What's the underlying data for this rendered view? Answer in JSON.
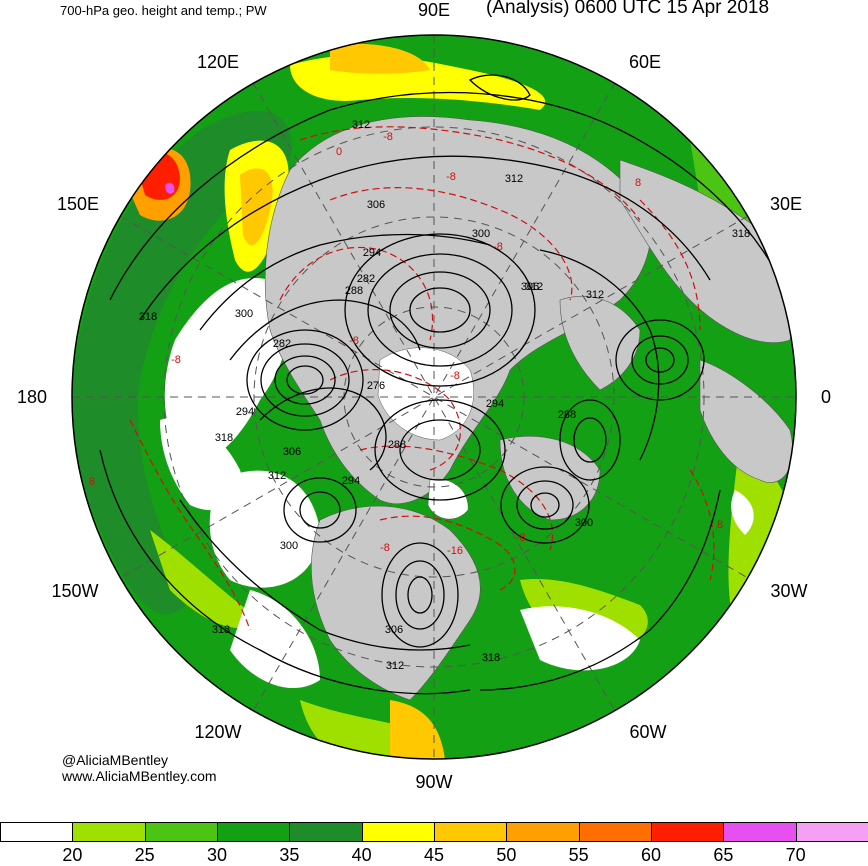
{
  "header": {
    "product": "700-hPa geo. height and temp.; PW",
    "valid": "(Analysis) 0600 UTC 15 Apr 2018"
  },
  "credits": {
    "handle": "@AliciaMBentley",
    "website": "www.AliciaMBentley.com"
  },
  "map": {
    "projection": "north polar stereographic",
    "longitude_labels": [
      "90E",
      "60E",
      "30E",
      "0",
      "30W",
      "60W",
      "90W",
      "120W",
      "150W",
      "180",
      "150E",
      "120E"
    ],
    "height_contour_labels": [
      "312",
      "312",
      "306",
      "300",
      "294",
      "282",
      "288",
      "312",
      "306",
      "318",
      "300",
      "282",
      "294",
      "276",
      "294",
      "288",
      "318",
      "306",
      "312",
      "288",
      "294",
      "312",
      "300",
      "300",
      "318",
      "306",
      "318",
      "312",
      "318"
    ],
    "temperature_contour_labels": [
      "0",
      "-8",
      "-8",
      "-8",
      "-8",
      "-8",
      "-8",
      "-8",
      "-16",
      "-8",
      "8",
      "8",
      "8"
    ],
    "colors": {
      "land": "#c8c8c8",
      "ocean": "#ffffff",
      "height_contours": "#000000",
      "temperature_contours": "#d01010"
    }
  },
  "colorbar": {
    "title": "PW",
    "colors": [
      "#ffffff",
      "#a0e000",
      "#4cc414",
      "#14a014",
      "#1e8c28",
      "#ffff00",
      "#ffc800",
      "#ffa000",
      "#ff6e00",
      "#ff1e00",
      "#e650f0",
      "#f5a0f5"
    ],
    "ticks": [
      "20",
      "25",
      "30",
      "35",
      "40",
      "45",
      "50",
      "55",
      "60",
      "65",
      "70"
    ]
  }
}
